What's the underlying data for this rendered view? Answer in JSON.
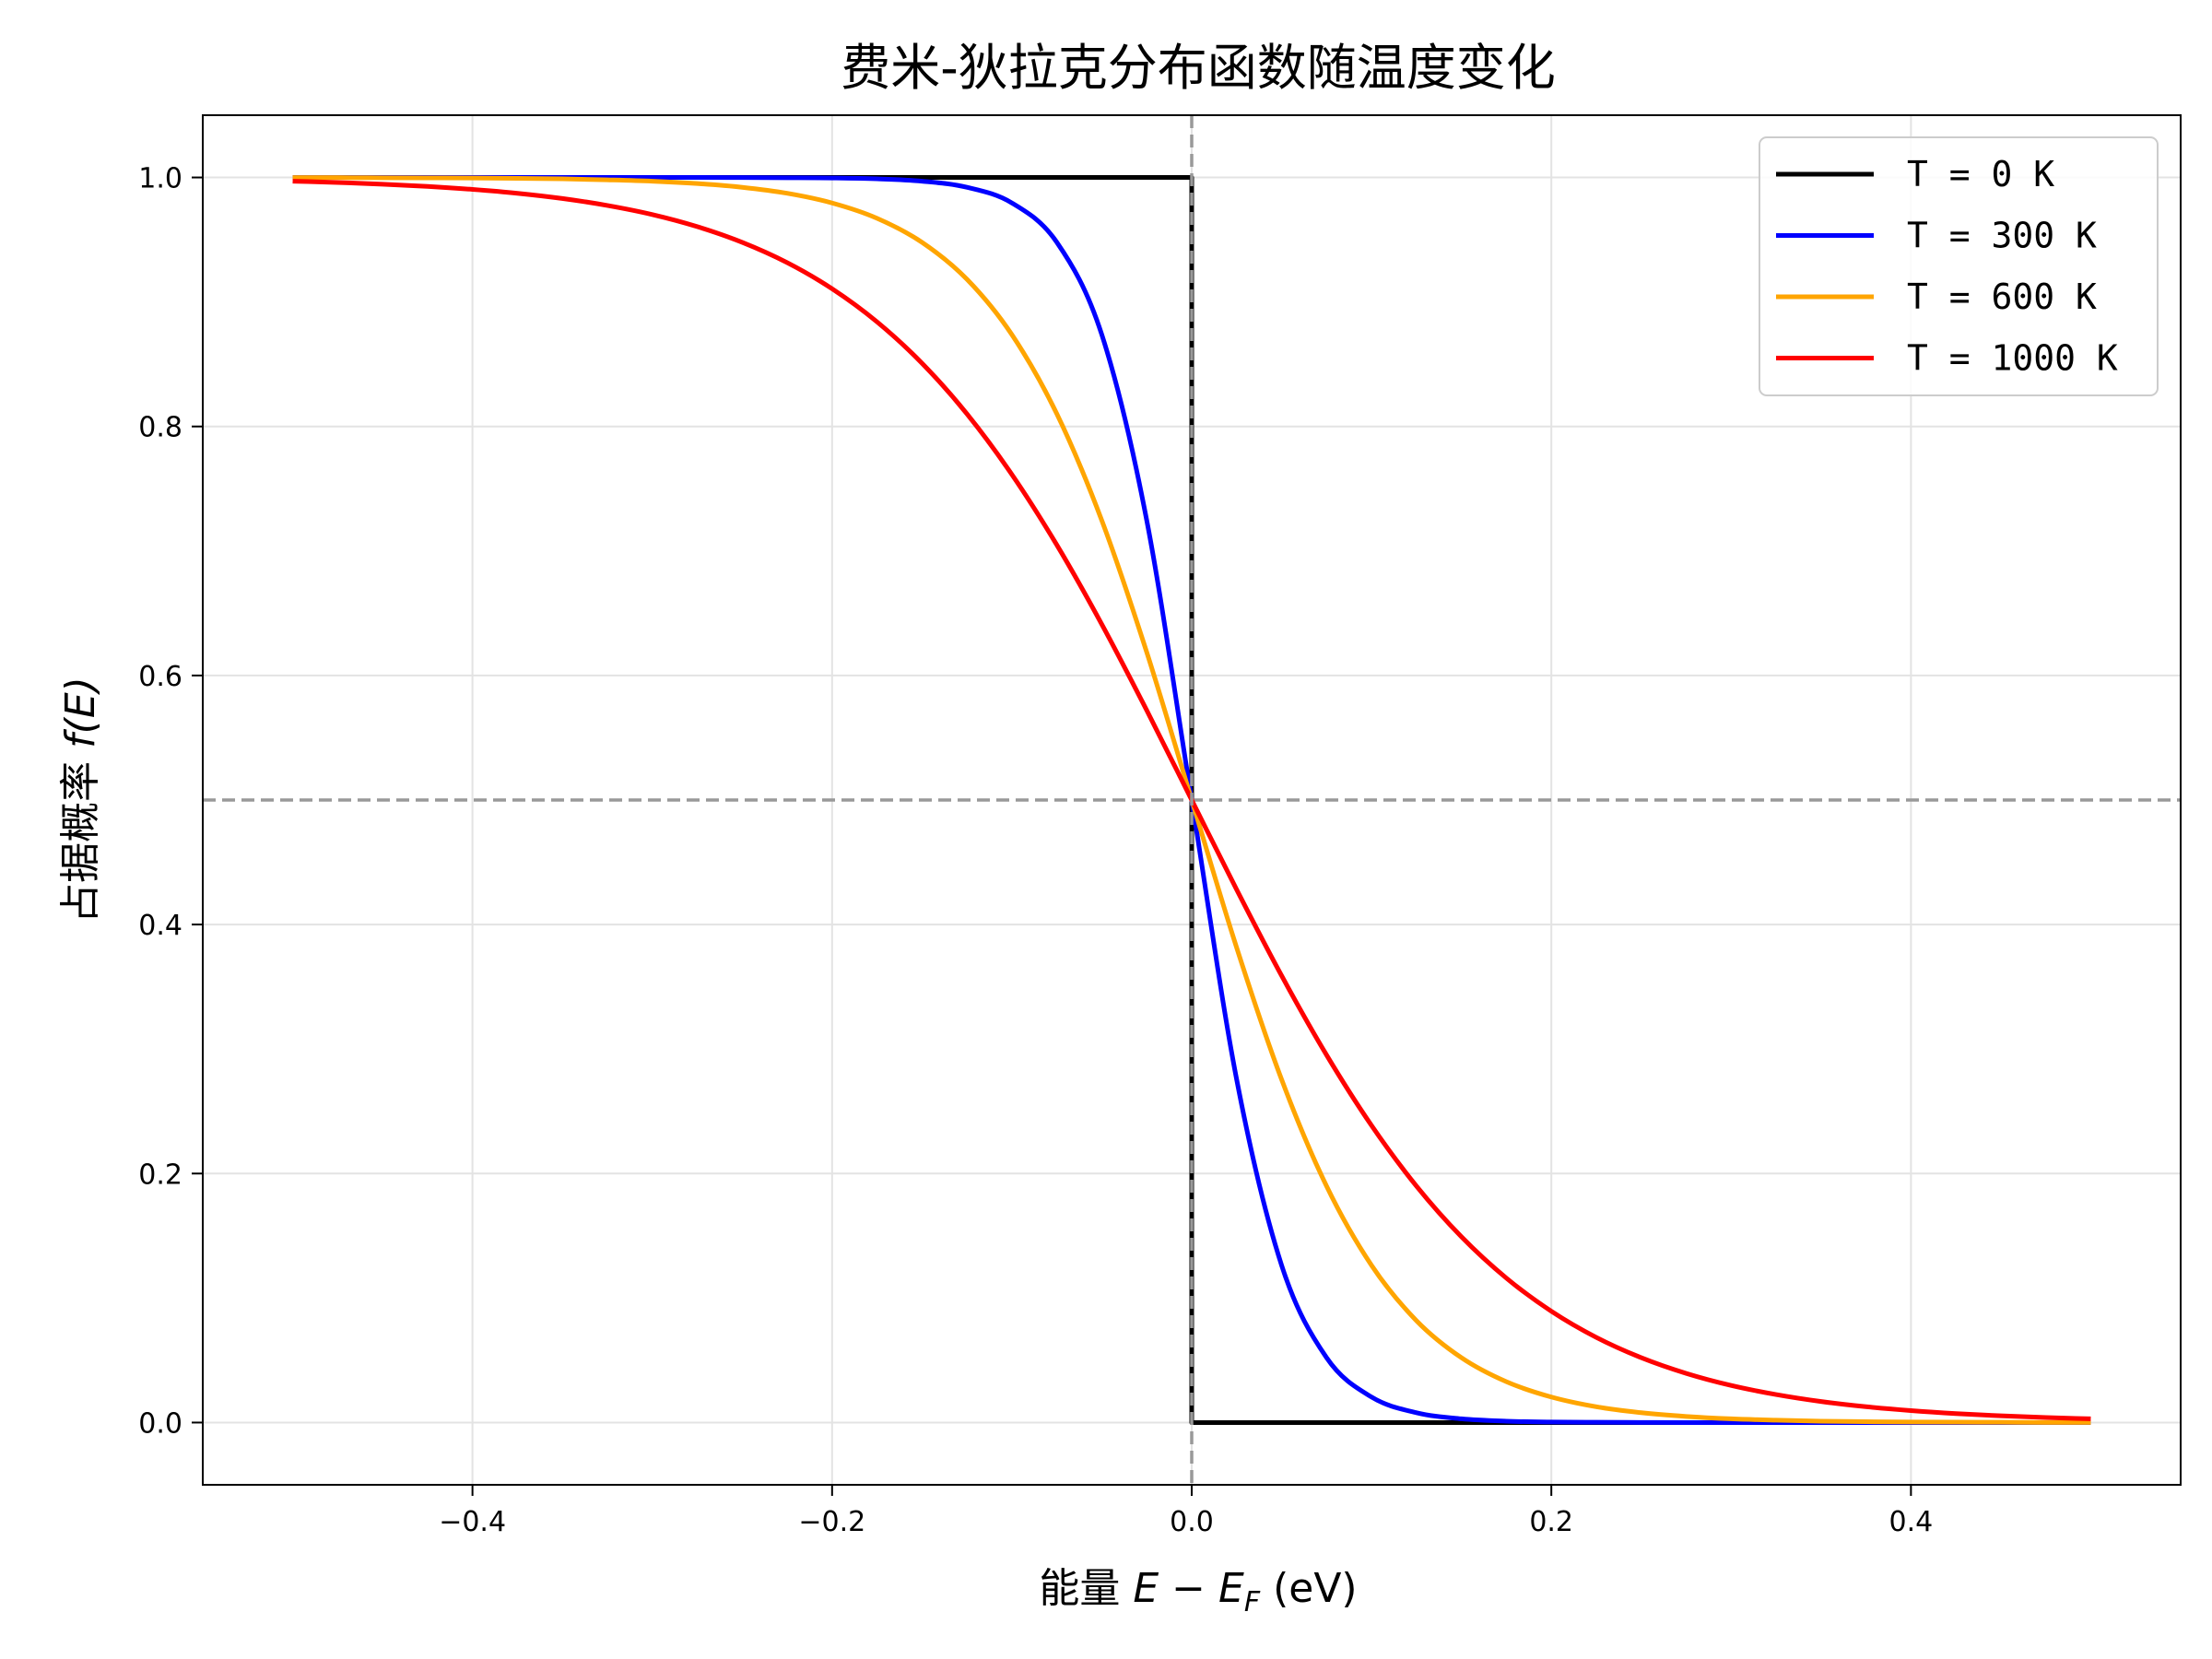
{
  "chart_data": {
    "type": "line",
    "title": "费米-狄拉克分布函数随温度变化",
    "xlabel": "能量 E − E_F (eV)",
    "xlabel_parts": {
      "prefix": "能量 ",
      "math": "E − E",
      "sub": "F",
      "suffix": " (eV)"
    },
    "ylabel": "占据概率 f(E)",
    "ylabel_parts": {
      "prefix": "占据概率 ",
      "math": "f(E)"
    },
    "xlim": [
      -0.55,
      0.55
    ],
    "ylim": [
      -0.05,
      1.05
    ],
    "xticks": [
      -0.4,
      -0.2,
      0.0,
      0.2,
      0.4
    ],
    "xtick_labels": [
      "−0.4",
      "−0.2",
      "0.0",
      "0.2",
      "0.4"
    ],
    "yticks": [
      0.0,
      0.2,
      0.4,
      0.6,
      0.8,
      1.0
    ],
    "ytick_labels": [
      "0.0",
      "0.2",
      "0.4",
      "0.6",
      "0.8",
      "1.0"
    ],
    "grid": true,
    "legend_position": "top-right",
    "reference_lines": [
      {
        "orientation": "horizontal",
        "value": 0.5,
        "style": "dashed",
        "color": "#999999"
      },
      {
        "orientation": "vertical",
        "value": 0.0,
        "style": "dashed",
        "color": "#999999"
      }
    ],
    "x": [
      -0.5,
      -0.475,
      -0.45,
      -0.425,
      -0.4,
      -0.375,
      -0.35,
      -0.325,
      -0.3,
      -0.275,
      -0.25,
      -0.225,
      -0.2,
      -0.175,
      -0.15,
      -0.125,
      -0.1,
      -0.075,
      -0.05,
      -0.025,
      0,
      0.025,
      0.05,
      0.075,
      0.1,
      0.125,
      0.15,
      0.175,
      0.2,
      0.225,
      0.25,
      0.275,
      0.3,
      0.325,
      0.35,
      0.375,
      0.4,
      0.425,
      0.45,
      0.475,
      0.5
    ],
    "series": [
      {
        "name": "T = 0 K",
        "color": "#000000",
        "step": true,
        "x": [
          -0.5,
          0,
          0,
          0.5
        ],
        "values": [
          1,
          1,
          0,
          0
        ]
      },
      {
        "name": "T = 300 K",
        "color": "#0000ff",
        "values": [
          1,
          1,
          1,
          1,
          1,
          1,
          1,
          1,
          1,
          1,
          0.9999,
          0.9998,
          0.9996,
          0.9989,
          0.997,
          0.9921,
          0.9795,
          0.9479,
          0.8737,
          0.7245,
          0.5,
          0.2755,
          0.1263,
          0.0521,
          0.0205,
          0.0079,
          0.003,
          0.0011,
          0.0004,
          0.0002,
          0.0001,
          0,
          0,
          0,
          0,
          0,
          0,
          0,
          0,
          0,
          0
        ]
      },
      {
        "name": "T = 600 K",
        "color": "#ffa500",
        "values": [
          0.9999,
          0.9999,
          0.9998,
          0.9997,
          0.9996,
          0.9993,
          0.9989,
          0.9981,
          0.997,
          0.9951,
          0.9921,
          0.9873,
          0.9795,
          0.9672,
          0.9479,
          0.9182,
          0.8737,
          0.8101,
          0.7245,
          0.6186,
          0.5,
          0.3814,
          0.2755,
          0.1899,
          0.1263,
          0.0818,
          0.0521,
          0.0328,
          0.0205,
          0.0127,
          0.0079,
          0.0049,
          0.003,
          0.0019,
          0.0011,
          0.0007,
          0.0004,
          0.0003,
          0.0002,
          0.0001,
          0.0001
        ]
      },
      {
        "name": "T = 1000 K",
        "color": "#ff0000",
        "values": [
          0.997,
          0.996,
          0.9946,
          0.9928,
          0.9904,
          0.9873,
          0.9831,
          0.9775,
          0.9702,
          0.9605,
          0.9479,
          0.9316,
          0.9106,
          0.884,
          0.8508,
          0.8101,
          0.7614,
          0.7048,
          0.6411,
          0.572,
          0.5,
          0.428,
          0.3589,
          0.2952,
          0.2386,
          0.1899,
          0.1492,
          0.116,
          0.0894,
          0.0684,
          0.0521,
          0.0395,
          0.0298,
          0.0225,
          0.0169,
          0.0127,
          0.0096,
          0.0072,
          0.0054,
          0.004,
          0.003
        ]
      }
    ]
  }
}
